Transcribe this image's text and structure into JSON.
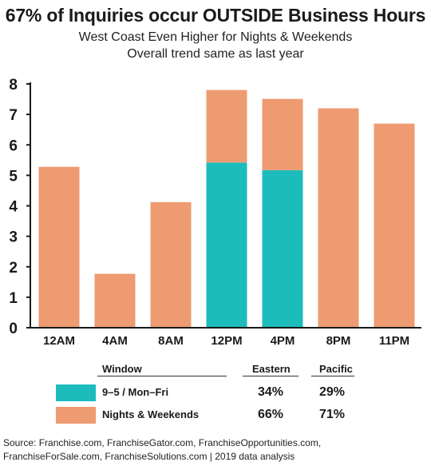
{
  "title": "67% of Inquiries occur OUTSIDE Business Hours",
  "subtitle_1": "West Coast Even Higher for Nights & Weekends",
  "subtitle_2": "Overall trend same as last year",
  "colors": {
    "business": "#1cbcbc",
    "nights": "#ee9b72",
    "axis": "#1a1a1a"
  },
  "chart_data": {
    "type": "bar",
    "stacked": true,
    "categories": [
      "12AM",
      "4AM",
      "8AM",
      "12PM",
      "4PM",
      "8PM",
      "11PM"
    ],
    "series": [
      {
        "name": "9–5 / Mon–Fri",
        "values": [
          0,
          0,
          0,
          5.42,
          5.17,
          0,
          0
        ]
      },
      {
        "name": "Nights & Weekends",
        "values": [
          5.28,
          1.77,
          4.12,
          2.38,
          2.34,
          7.2,
          6.7
        ]
      }
    ],
    "ylim": [
      0,
      8
    ],
    "yticks": [
      "0",
      "1",
      "2",
      "3",
      "4",
      "5",
      "6",
      "7",
      "8"
    ],
    "grid": false
  },
  "legend": {
    "headers": {
      "window": "Window",
      "eastern": "Eastern",
      "pacific": "Pacific"
    },
    "rows": [
      {
        "label": "9–5 / Mon–Fri",
        "eastern": "34%",
        "pacific": "29%"
      },
      {
        "label": "Nights & Weekends",
        "eastern": "66%",
        "pacific": "71%"
      }
    ]
  },
  "source_line_1": "Source: Franchise.com, FranchiseGator.com, FranchiseOpportunities.com,",
  "source_line_2": "FranchiseForSale.com, FranchiseSolutions.com | 2019 data analysis"
}
